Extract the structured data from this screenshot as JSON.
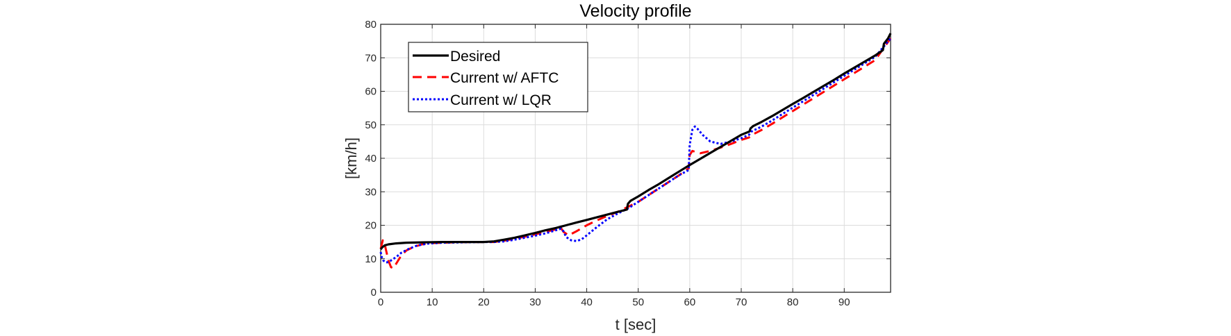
{
  "chart_data": {
    "type": "line",
    "title": "Velocity profile",
    "xlabel": "t [sec]",
    "ylabel": "[km/h]",
    "xlim": [
      0,
      99
    ],
    "ylim": [
      0,
      80
    ],
    "xticks": [
      0,
      10,
      20,
      30,
      40,
      50,
      60,
      70,
      80,
      90
    ],
    "yticks": [
      0,
      10,
      20,
      30,
      40,
      50,
      60,
      70,
      80
    ],
    "grid": true,
    "legend_position": "top-left",
    "series": [
      {
        "name": "Desired",
        "color": "#000000",
        "style": "solid",
        "x": [
          0,
          0.3,
          0.8,
          1.5,
          3,
          5,
          8,
          12,
          16,
          20,
          22,
          24,
          26,
          28,
          30,
          32,
          34,
          36,
          38,
          40,
          42,
          44,
          46,
          47.8,
          48.0,
          48.5,
          50,
          52,
          54,
          56,
          58,
          60,
          62,
          64,
          66,
          68,
          70,
          71.6,
          71.8,
          72.3,
          74,
          76,
          78,
          80,
          82,
          84,
          86,
          88,
          90,
          92,
          94,
          96,
          97.5,
          97.7,
          98.5,
          99
        ],
        "y": [
          12.8,
          13.4,
          14.0,
          14.3,
          14.6,
          14.8,
          14.9,
          15.0,
          15.0,
          15.0,
          15.2,
          15.7,
          16.3,
          17.0,
          17.7,
          18.5,
          19.2,
          20.0,
          20.8,
          21.6,
          22.4,
          23.2,
          24.0,
          24.7,
          26.4,
          27.3,
          28.6,
          30.5,
          32.3,
          34.2,
          36.1,
          38.0,
          39.8,
          41.6,
          43.4,
          45.2,
          47.0,
          48.0,
          48.9,
          49.6,
          50.9,
          52.6,
          54.4,
          56.2,
          58.0,
          59.8,
          61.6,
          63.4,
          65.3,
          67.1,
          68.9,
          70.7,
          72.3,
          74.2,
          75.8,
          77.3
        ]
      },
      {
        "name": "Current w/ AFTC",
        "color": "#ff0000",
        "style": "dashed",
        "x": [
          0,
          0.4,
          0.9,
          1.5,
          2.0,
          2.5,
          3.0,
          4.0,
          5.0,
          6.5,
          8,
          10,
          14,
          18,
          20,
          22,
          24,
          26,
          28,
          30,
          32,
          34,
          35.0,
          35.5,
          36.5,
          38,
          40,
          42,
          44,
          46,
          48,
          50,
          52,
          54,
          56,
          58,
          59.8,
          60.0,
          60.5,
          62,
          64,
          66,
          68,
          70,
          71.5,
          72.0,
          74,
          76,
          78,
          80,
          84,
          88,
          92,
          96,
          99
        ],
        "y": [
          13.0,
          15.5,
          13.5,
          9.5,
          7.5,
          7.2,
          8.5,
          11.0,
          12.5,
          13.6,
          14.3,
          14.7,
          14.9,
          15.0,
          15.0,
          15.0,
          15.4,
          16.0,
          16.6,
          17.3,
          18.0,
          18.8,
          19.2,
          18.0,
          17.0,
          18.2,
          20.0,
          21.5,
          22.8,
          24.0,
          25.5,
          27.0,
          29.0,
          31.0,
          33.0,
          35.0,
          37.0,
          41.0,
          42.2,
          41.5,
          42.2,
          43.2,
          44.3,
          45.5,
          46.2,
          46.9,
          48.5,
          50.3,
          52.2,
          54.1,
          57.9,
          61.7,
          65.5,
          69.3,
          75.8
        ]
      },
      {
        "name": "Current w/ LQR",
        "color": "#0000ff",
        "style": "dotted",
        "x": [
          0,
          0.2,
          0.5,
          1.0,
          1.5,
          2.0,
          3.0,
          4.0,
          5.5,
          7,
          9,
          12,
          16,
          20,
          22,
          24,
          26,
          28,
          30,
          32,
          34,
          35.0,
          35.5,
          36.0,
          37.0,
          38.0,
          39.0,
          40,
          42,
          44,
          46,
          48,
          50,
          52,
          54,
          56,
          58,
          59.8,
          60.0,
          60.5,
          61.0,
          61.5,
          62.5,
          64,
          66,
          68,
          70,
          71.5,
          72.0,
          74,
          76,
          78,
          80,
          84,
          88,
          92,
          96,
          99
        ],
        "y": [
          12.0,
          10.5,
          9.5,
          8.9,
          9.0,
          9.5,
          10.5,
          11.8,
          13.0,
          13.9,
          14.5,
          14.8,
          14.9,
          15.0,
          15.0,
          15.2,
          15.7,
          16.3,
          16.9,
          17.6,
          18.5,
          19.0,
          18.2,
          16.5,
          15.5,
          15.3,
          15.8,
          17.0,
          19.5,
          21.8,
          23.5,
          25.0,
          27.0,
          29.0,
          31.0,
          33.0,
          35.0,
          36.5,
          44.0,
          48.5,
          49.5,
          48.8,
          47.0,
          45.0,
          44.3,
          45.0,
          46.0,
          47.0,
          48.0,
          49.5,
          51.3,
          53.2,
          55.1,
          58.9,
          62.7,
          66.5,
          70.3,
          75.8
        ]
      }
    ]
  }
}
